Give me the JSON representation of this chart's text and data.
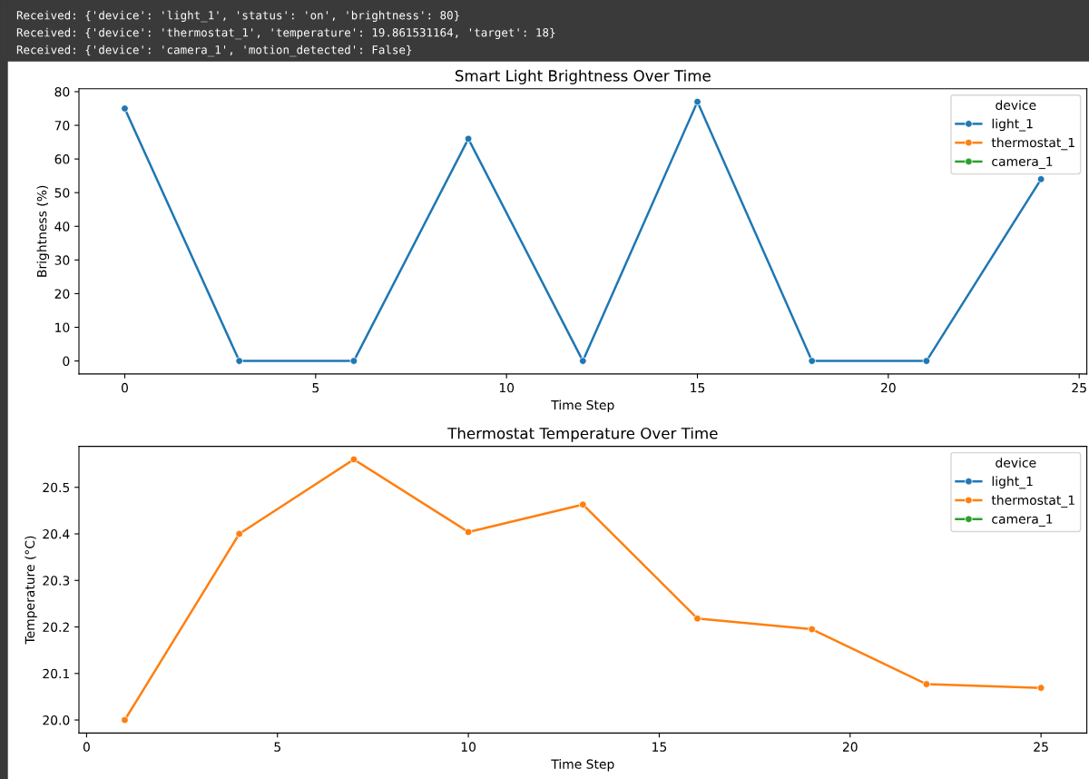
{
  "chart_data": [
    {
      "type": "line",
      "title": "Smart Light Brightness Over Time",
      "xlabel": "Time Step",
      "ylabel": "Brightness (%)",
      "annotations": [
        "Received: {'device': 'light_1', 'status': 'on', 'brightness': 80}",
        "Received: {'device': 'thermostat_1', 'temperature': 19.861531164, 'target': 18}",
        "Received: {'device': 'camera_1', 'motion_detected': False}"
      ],
      "x": [
        0,
        3,
        6,
        9,
        12,
        15,
        18,
        21,
        24
      ],
      "series": [
        {
          "name": "light_1",
          "color": "#1f77b4",
          "values": [
            75,
            0,
            0,
            66,
            0,
            77,
            0,
            0,
            54
          ]
        },
        {
          "name": "thermostat_1",
          "color": "#ff7f0e",
          "values": [
            null,
            null,
            null,
            null,
            null,
            null,
            null,
            null,
            null
          ]
        },
        {
          "name": "camera_1",
          "color": "#2ca02c",
          "values": [
            null,
            null,
            null,
            null,
            null,
            null,
            null,
            null,
            null
          ]
        }
      ],
      "xlim": [
        -1.2,
        25.2
      ],
      "xticks": [
        0,
        5,
        10,
        15,
        20,
        25
      ],
      "ylim": [
        -3.85,
        80.85
      ],
      "yticks": [
        0,
        10,
        20,
        30,
        40,
        50,
        60,
        70,
        80
      ],
      "legend_title": "device",
      "legend": "top right",
      "marker": "circle",
      "line_style": "solid",
      "grid": false
    },
    {
      "type": "line",
      "title": "Thermostat Temperature Over Time",
      "xlabel": "Time Step",
      "ylabel": "Temperature (°C)",
      "x": [
        1,
        4,
        7,
        10,
        13,
        16,
        19,
        22,
        25
      ],
      "series": [
        {
          "name": "light_1",
          "color": "#1f77b4",
          "values": [
            null,
            null,
            null,
            null,
            null,
            null,
            null,
            null,
            null
          ]
        },
        {
          "name": "thermostat_1",
          "color": "#ff7f0e",
          "values": [
            20.0,
            20.4,
            20.56,
            20.404,
            20.463,
            20.218,
            20.195,
            20.077,
            20.069
          ]
        },
        {
          "name": "camera_1",
          "color": "#2ca02c",
          "values": [
            null,
            null,
            null,
            null,
            null,
            null,
            null,
            null,
            null
          ]
        }
      ],
      "xlim": [
        -0.2,
        26.2
      ],
      "xticks": [
        0,
        5,
        10,
        15,
        20,
        25
      ],
      "ylim": [
        19.972,
        20.588
      ],
      "yticks": [
        {
          "value": 20.0,
          "label": "20.0"
        },
        20.1,
        20.2,
        20.3,
        20.4,
        20.5
      ],
      "legend_title": "device",
      "legend": "top right",
      "marker": "circle",
      "line_style": "solid",
      "grid": false
    }
  ]
}
